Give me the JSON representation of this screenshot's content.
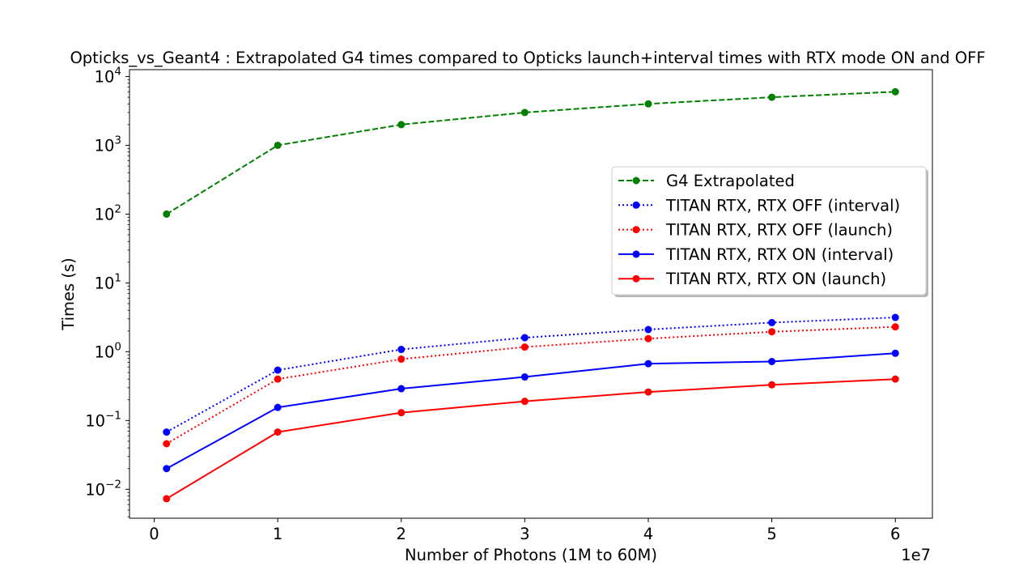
{
  "chart_data": {
    "type": "line",
    "title": "Opticks_vs_Geant4 : Extrapolated G4 times compared to Opticks launch+interval times with RTX mode ON and OFF",
    "xlabel": "Number of Photons (1M to 60M)",
    "ylabel": "Times (s)",
    "x_offset_label": "1e7",
    "xscale": "linear",
    "yscale": "log",
    "xlim": [
      -0.2,
      6.3
    ],
    "ylim_log10": [
      -2.42,
      4.1
    ],
    "x_ticks": [
      0,
      1,
      2,
      3,
      4,
      5,
      6
    ],
    "x_tick_labels": [
      "0",
      "1",
      "2",
      "3",
      "4",
      "5",
      "6"
    ],
    "y_ticks_log10": [
      -2,
      -1,
      0,
      1,
      2,
      3,
      4
    ],
    "y_tick_labels": [
      {
        "base": "10",
        "exp": "−2"
      },
      {
        "base": "10",
        "exp": "−1"
      },
      {
        "base": "10",
        "exp": "0"
      },
      {
        "base": "10",
        "exp": "1"
      },
      {
        "base": "10",
        "exp": "2"
      },
      {
        "base": "10",
        "exp": "3"
      },
      {
        "base": "10",
        "exp": "4"
      }
    ],
    "x": [
      0.1,
      1,
      2,
      3,
      4,
      5,
      6
    ],
    "grid": false,
    "legend_position": "center-right",
    "series": [
      {
        "name": "G4 Extrapolated",
        "color": "#008000",
        "style": "dashed",
        "values": [
          100,
          1000,
          2000,
          3000,
          4000,
          5000,
          6000
        ]
      },
      {
        "name": "TITAN RTX, RTX OFF (interval)",
        "color": "#0000ff",
        "style": "dotted",
        "values": [
          0.068,
          0.54,
          1.08,
          1.6,
          2.1,
          2.65,
          3.15
        ]
      },
      {
        "name": "TITAN RTX, RTX OFF (launch)",
        "color": "#ff0000",
        "style": "dotted",
        "values": [
          0.046,
          0.4,
          0.78,
          1.17,
          1.55,
          1.95,
          2.3
        ]
      },
      {
        "name": "TITAN RTX, RTX ON (interval)",
        "color": "#0000ff",
        "style": "solid",
        "values": [
          0.02,
          0.155,
          0.29,
          0.43,
          0.67,
          0.72,
          0.95
        ]
      },
      {
        "name": "TITAN RTX, RTX ON (launch)",
        "color": "#ff0000",
        "style": "solid",
        "values": [
          0.0073,
          0.068,
          0.13,
          0.19,
          0.26,
          0.33,
          0.4
        ]
      }
    ]
  }
}
